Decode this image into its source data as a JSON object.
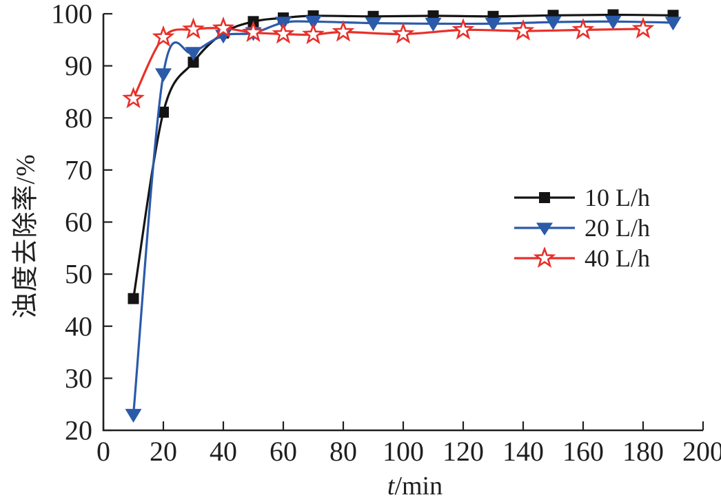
{
  "chart_data": {
    "type": "line",
    "title": "",
    "xlabel": "t/min",
    "xlabel_variable": "t",
    "xlabel_unit": "/min",
    "ylabel": "浊度去除率/%",
    "xlim": [
      0,
      200
    ],
    "ylim": [
      20,
      100
    ],
    "xticks": [
      0,
      20,
      40,
      60,
      80,
      100,
      120,
      140,
      160,
      180,
      200
    ],
    "yticks": [
      20,
      30,
      40,
      50,
      60,
      70,
      80,
      90,
      100
    ],
    "grid": false,
    "legend_position": "right-center",
    "axis_color": "#1f1f1f",
    "text_color": "#1f1f1f",
    "background_color": "#ffffff",
    "series": [
      {
        "name": "10 L/h",
        "color": "#141414",
        "marker": "square",
        "x": [
          10,
          20,
          30,
          40,
          50,
          60,
          70,
          90,
          110,
          130,
          150,
          170,
          190
        ],
        "y": [
          45.3,
          81.1,
          90.7,
          96.3,
          98.5,
          99.2,
          99.6,
          99.5,
          99.6,
          99.5,
          99.7,
          99.8,
          99.7
        ]
      },
      {
        "name": "20 L/h",
        "color": "#2b5aa9",
        "marker": "triangle-down",
        "x": [
          10,
          20,
          30,
          40,
          50,
          60,
          70,
          90,
          110,
          130,
          150,
          170,
          190
        ],
        "y": [
          23.0,
          88.4,
          92.5,
          95.8,
          96.3,
          98.3,
          98.5,
          98.2,
          98.1,
          98.1,
          98.4,
          98.5,
          98.3
        ]
      },
      {
        "name": "40 L/h",
        "color": "#e8302a",
        "marker": "star-open",
        "x": [
          10,
          20,
          30,
          40,
          50,
          60,
          70,
          80,
          100,
          120,
          140,
          160,
          180
        ],
        "y": [
          83.7,
          95.5,
          97.0,
          97.2,
          96.4,
          96.1,
          96.0,
          96.5,
          96.1,
          96.9,
          96.7,
          96.9,
          97.1
        ]
      }
    ]
  }
}
